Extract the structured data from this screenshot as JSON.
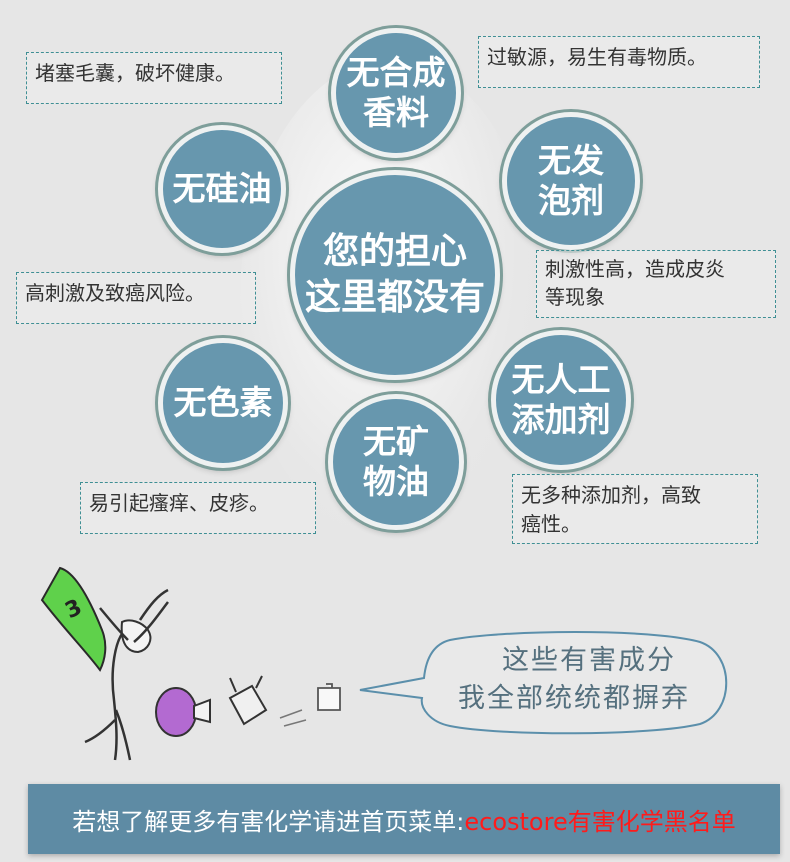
{
  "center_text": [
    "您的担心",
    "这里都没有"
  ],
  "items": [
    {
      "label": [
        "无合成",
        "香料"
      ],
      "note": [
        "过敏源，易生有毒物质。"
      ]
    },
    {
      "label": [
        "无发",
        "泡剂"
      ],
      "note": [
        "刺激性高，造成皮炎",
        "等现象"
      ]
    },
    {
      "label": [
        "无人工",
        "添加剂"
      ],
      "note": [
        "无多种添加剂，高致",
        "癌性。"
      ]
    },
    {
      "label": [
        "无矿",
        "物油"
      ],
      "note": [
        "易引起瘙痒、皮疹。"
      ]
    },
    {
      "label": [
        "无色素"
      ],
      "note": [
        "高刺激及致癌风险。"
      ]
    },
    {
      "label": [
        "无硅油"
      ],
      "note": [
        "堵塞毛囊，破坏健康。"
      ]
    }
  ],
  "bubble": [
    "这些有害成分",
    "我全部统统都摒弃"
  ],
  "banner": {
    "prefix": "若想了解更多有害化学请进首页菜单: ",
    "link": "ecostore有害化学黑名单"
  },
  "colors": {
    "circle": "#6797ae",
    "circle_ring": "#7e9e9a",
    "note_border": "#3f8f94",
    "banner_bg": "#5e8ba4",
    "banner_link": "#ff1b1b",
    "cape": "#5fd14b"
  }
}
